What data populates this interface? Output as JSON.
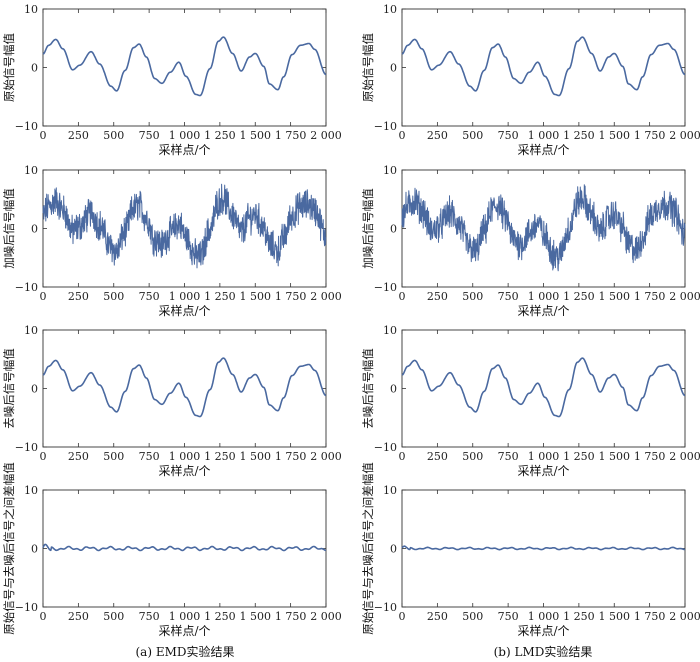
{
  "chart_data": {
    "type": "line",
    "columns": [
      {
        "caption": "(a) EMD实验结果",
        "panels": [
          {
            "ylabel": "原始信号幅值",
            "xlabel": "采样点/个",
            "signal": "clean",
            "xlim": [
              0,
              2000
            ],
            "ylim": [
              -10,
              10
            ]
          },
          {
            "ylabel": "加噪后信号幅值",
            "xlabel": "采样点/个",
            "signal": "noisy",
            "noise_amplitude": 2.2,
            "xlim": [
              0,
              2000
            ],
            "ylim": [
              -10,
              10
            ]
          },
          {
            "ylabel": "去噪后信号幅值",
            "xlabel": "采样点/个",
            "signal": "clean",
            "xlim": [
              0,
              2000
            ],
            "ylim": [
              -10,
              10
            ]
          },
          {
            "ylabel": "原始信号与去噪后信号之间差幅值",
            "xlabel": "采样点/个",
            "signal": "residual",
            "residual_amplitude": 0.35,
            "xlim": [
              0,
              2000
            ],
            "ylim": [
              -10,
              10
            ]
          }
        ]
      },
      {
        "caption": "(b) LMD实验结果",
        "panels": [
          {
            "ylabel": "原始信号幅值",
            "xlabel": "采样点/个",
            "signal": "clean",
            "xlim": [
              0,
              2000
            ],
            "ylim": [
              -10,
              10
            ]
          },
          {
            "ylabel": "加噪后信号幅值",
            "xlabel": "采样点/个",
            "signal": "noisy",
            "noise_amplitude": 2.2,
            "xlim": [
              0,
              2000
            ],
            "ylim": [
              -10,
              10
            ]
          },
          {
            "ylabel": "去噪后信号幅值",
            "xlabel": "采样点/个",
            "signal": "clean",
            "xlim": [
              0,
              2000
            ],
            "ylim": [
              -10,
              10
            ]
          },
          {
            "ylabel": "原始信号与去噪后信号之间差幅值",
            "xlabel": "采样点/个",
            "signal": "residual",
            "residual_amplitude": 0.2,
            "xlim": [
              0,
              2000
            ],
            "ylim": [
              -10,
              10
            ]
          }
        ]
      }
    ],
    "x_ticks": [
      0,
      250,
      500,
      750,
      1000,
      1250,
      1500,
      1750,
      2000
    ],
    "x_tick_labels": [
      "0",
      "250",
      "500",
      "750",
      "1 000",
      "1 250",
      "1 500",
      "1 750",
      "2 000"
    ],
    "y_ticks": [
      10,
      0,
      -10
    ],
    "y_tick_labels": [
      "10",
      "0",
      "−10"
    ],
    "clean_signal": {
      "x": [
        0,
        40,
        90,
        140,
        210,
        260,
        340,
        400,
        480,
        520,
        580,
        640,
        680,
        730,
        790,
        840,
        900,
        960,
        1010,
        1080,
        1110,
        1180,
        1240,
        1275,
        1340,
        1400,
        1460,
        1500,
        1560,
        1600,
        1660,
        1700,
        1760,
        1820,
        1880,
        1920,
        2000
      ],
      "y": [
        2.3,
        3.8,
        4.8,
        3.2,
        -0.4,
        0.4,
        2.7,
        0.6,
        -3.2,
        -4.0,
        -0.5,
        3.4,
        4.0,
        1.8,
        -1.9,
        -2.7,
        -0.8,
        0.9,
        -1.5,
        -4.6,
        -4.8,
        -0.2,
        4.5,
        5.2,
        2.4,
        -0.6,
        1.8,
        2.4,
        0.2,
        -2.8,
        -3.8,
        -1.6,
        2.2,
        3.8,
        4.1,
        3.1,
        -1.2
      ]
    },
    "line_color": "#4a69a0"
  }
}
